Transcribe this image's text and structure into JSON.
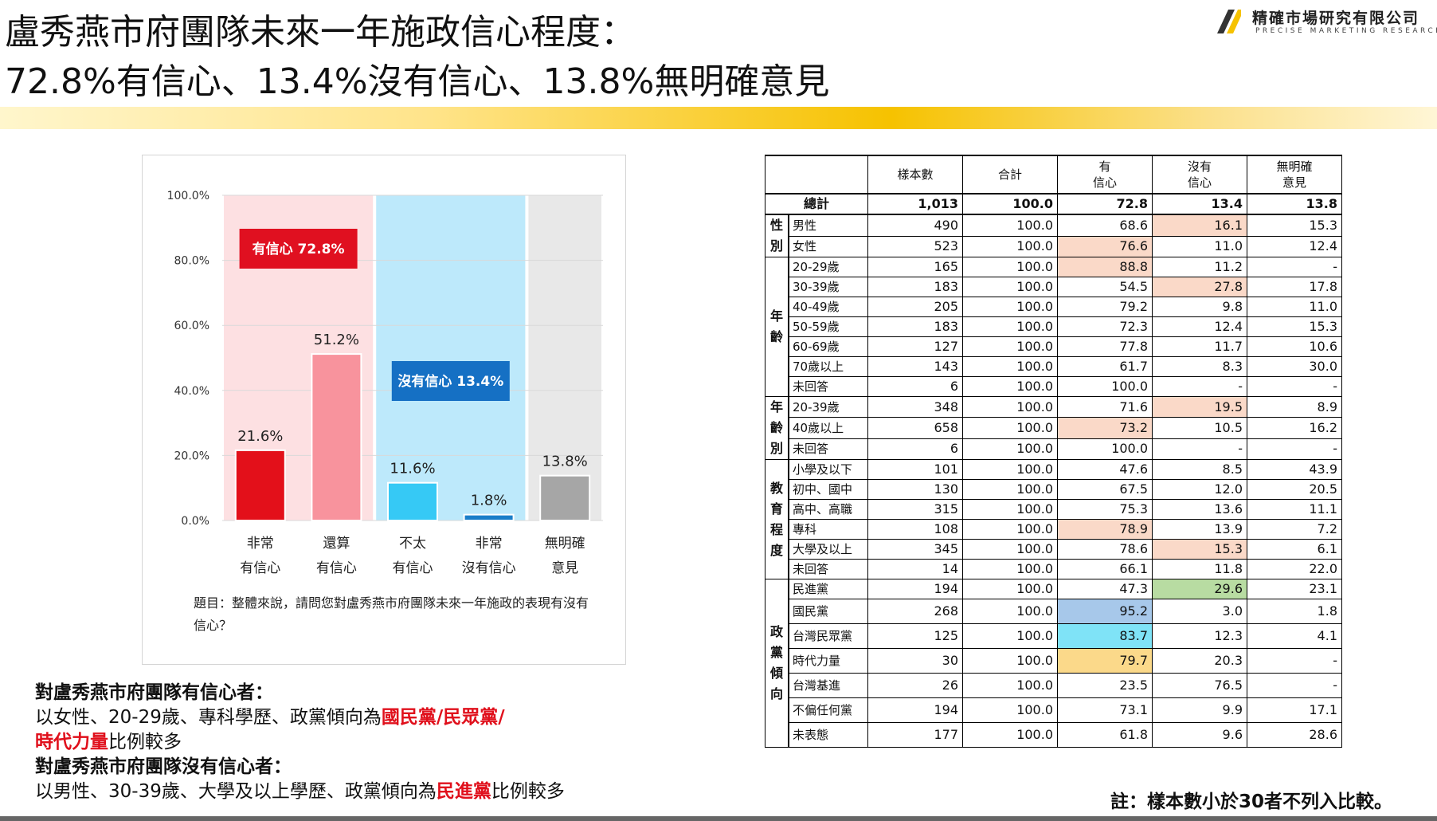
{
  "title": {
    "line1": "盧秀燕市府團隊未來一年施政信心程度：",
    "line2": "72.8%有信心、13.4%沒有信心、13.8%無明確意見"
  },
  "logo": {
    "name": "精確市場研究有限公司",
    "sub": "PRECISE MARKETING RESEARCH",
    "accent": "#f6c200"
  },
  "chart_data": {
    "type": "bar",
    "categories": [
      [
        "非常",
        "有信心"
      ],
      [
        "還算",
        "有信心"
      ],
      [
        "不太",
        "有信心"
      ],
      [
        "非常",
        "沒有信心"
      ],
      [
        "無明確",
        "意見"
      ]
    ],
    "values": [
      21.6,
      51.2,
      11.6,
      1.8,
      13.8
    ],
    "value_labels": [
      "21.6%",
      "51.2%",
      "11.6%",
      "1.8%",
      "13.8%"
    ],
    "bar_colors": [
      "#e3101a",
      "#f8939d",
      "#36c9f5",
      "#1a7dc9",
      "#a6a6a6"
    ],
    "ylim": [
      0,
      100
    ],
    "yticks": [
      "0.0%",
      "20.0%",
      "40.0%",
      "60.0%",
      "80.0%",
      "100.0%"
    ],
    "groups": [
      {
        "label": "有信心 72.8%",
        "color": "#fde0e2",
        "label_bg": "#e01020",
        "span": [
          0,
          1
        ]
      },
      {
        "label": "沒有信心 13.4%",
        "color": "#bde9fb",
        "label_bg": "#1570c4",
        "span": [
          2,
          3
        ]
      },
      {
        "label": "",
        "color": "#e8e8e8",
        "label_bg": "",
        "span": [
          4,
          4
        ]
      }
    ],
    "question": "題目：整體來說，請問您對盧秀燕市府團隊未來一年施政的表現有沒有信心？"
  },
  "table": {
    "headers": [
      "樣本數",
      "合計",
      "有\n信心",
      "沒有\n信心",
      "無明確\n意見"
    ],
    "total": {
      "label": "總計",
      "values": [
        "1,013",
        "100.0",
        "72.8",
        "13.4",
        "13.8"
      ]
    },
    "groups": [
      {
        "name": "性別",
        "rows": [
          {
            "label": "男性",
            "values": [
              "490",
              "100.0",
              "68.6",
              "16.1",
              "15.3"
            ],
            "hl": [
              null,
              null,
              null,
              "pink",
              null
            ]
          },
          {
            "label": "女性",
            "values": [
              "523",
              "100.0",
              "76.6",
              "11.0",
              "12.4"
            ],
            "hl": [
              null,
              null,
              "pink",
              null,
              null
            ]
          }
        ]
      },
      {
        "name": "年齡",
        "rows": [
          {
            "label": "20-29歲",
            "values": [
              "165",
              "100.0",
              "88.8",
              "11.2",
              "-"
            ],
            "hl": [
              null,
              null,
              "pink",
              null,
              null
            ]
          },
          {
            "label": "30-39歲",
            "values": [
              "183",
              "100.0",
              "54.5",
              "27.8",
              "17.8"
            ],
            "hl": [
              null,
              null,
              null,
              "pink",
              null
            ]
          },
          {
            "label": "40-49歲",
            "values": [
              "205",
              "100.0",
              "79.2",
              "9.8",
              "11.0"
            ],
            "hl": [
              null,
              null,
              null,
              null,
              null
            ]
          },
          {
            "label": "50-59歲",
            "values": [
              "183",
              "100.0",
              "72.3",
              "12.4",
              "15.3"
            ],
            "hl": [
              null,
              null,
              null,
              null,
              null
            ]
          },
          {
            "label": "60-69歲",
            "values": [
              "127",
              "100.0",
              "77.8",
              "11.7",
              "10.6"
            ],
            "hl": [
              null,
              null,
              null,
              null,
              null
            ]
          },
          {
            "label": "70歲以上",
            "values": [
              "143",
              "100.0",
              "61.7",
              "8.3",
              "30.0"
            ],
            "hl": [
              null,
              null,
              null,
              null,
              null
            ]
          },
          {
            "label": "未回答",
            "values": [
              "6",
              "100.0",
              "100.0",
              "-",
              "-"
            ],
            "hl": [
              null,
              null,
              null,
              null,
              null
            ]
          }
        ]
      },
      {
        "name": "年齡別",
        "rows": [
          {
            "label": "20-39歲",
            "values": [
              "348",
              "100.0",
              "71.6",
              "19.5",
              "8.9"
            ],
            "hl": [
              null,
              null,
              null,
              "pink",
              null
            ]
          },
          {
            "label": "40歲以上",
            "values": [
              "658",
              "100.0",
              "73.2",
              "10.5",
              "16.2"
            ],
            "hl": [
              null,
              null,
              "pink",
              null,
              null
            ]
          },
          {
            "label": "未回答",
            "values": [
              "6",
              "100.0",
              "100.0",
              "-",
              "-"
            ],
            "hl": [
              null,
              null,
              null,
              null,
              null
            ]
          }
        ]
      },
      {
        "name": "教育程度",
        "rows": [
          {
            "label": "小學及以下",
            "values": [
              "101",
              "100.0",
              "47.6",
              "8.5",
              "43.9"
            ],
            "hl": [
              null,
              null,
              null,
              null,
              null
            ]
          },
          {
            "label": "初中、國中",
            "values": [
              "130",
              "100.0",
              "67.5",
              "12.0",
              "20.5"
            ],
            "hl": [
              null,
              null,
              null,
              null,
              null
            ]
          },
          {
            "label": "高中、高職",
            "values": [
              "315",
              "100.0",
              "75.3",
              "13.6",
              "11.1"
            ],
            "hl": [
              null,
              null,
              null,
              null,
              null
            ]
          },
          {
            "label": "專科",
            "values": [
              "108",
              "100.0",
              "78.9",
              "13.9",
              "7.2"
            ],
            "hl": [
              null,
              null,
              "pink",
              null,
              null
            ]
          },
          {
            "label": "大學及以上",
            "values": [
              "345",
              "100.0",
              "78.6",
              "15.3",
              "6.1"
            ],
            "hl": [
              null,
              null,
              null,
              "pink",
              null
            ]
          },
          {
            "label": "未回答",
            "values": [
              "14",
              "100.0",
              "66.1",
              "11.8",
              "22.0"
            ],
            "hl": [
              null,
              null,
              null,
              null,
              null
            ]
          }
        ]
      },
      {
        "name": "政黨傾向",
        "rows": [
          {
            "label": "民進黨",
            "values": [
              "194",
              "100.0",
              "47.3",
              "29.6",
              "23.1"
            ],
            "hl": [
              null,
              null,
              null,
              "green",
              null
            ]
          },
          {
            "label": "國民黨",
            "values": [
              "268",
              "100.0",
              "95.2",
              "3.0",
              "1.8"
            ],
            "hl": [
              null,
              null,
              "blue",
              null,
              null
            ]
          },
          {
            "label": "台灣民眾黨",
            "values": [
              "125",
              "100.0",
              "83.7",
              "12.3",
              "4.1"
            ],
            "hl": [
              null,
              null,
              "cyan",
              null,
              null
            ]
          },
          {
            "label": "時代力量",
            "values": [
              "30",
              "100.0",
              "79.7",
              "20.3",
              "-"
            ],
            "hl": [
              null,
              null,
              "yellow",
              null,
              null
            ]
          },
          {
            "label": "台灣基進",
            "values": [
              "26",
              "100.0",
              "23.5",
              "76.5",
              "-"
            ],
            "hl": [
              null,
              null,
              null,
              null,
              null
            ]
          },
          {
            "label": "不偏任何黨",
            "values": [
              "194",
              "100.0",
              "73.1",
              "9.9",
              "17.1"
            ],
            "hl": [
              null,
              null,
              null,
              null,
              null
            ]
          },
          {
            "label": "未表態",
            "values": [
              "177",
              "100.0",
              "61.8",
              "9.6",
              "28.6"
            ],
            "hl": [
              null,
              null,
              null,
              null,
              null
            ]
          }
        ]
      }
    ]
  },
  "summary": {
    "conf_head": "對盧秀燕市府團隊有信心者：",
    "conf_pre": "以女性、20-29歲、專科學歷、政黨傾向為",
    "conf_hl1": "國民黨/民眾黨/",
    "conf_hl2": "時代力量",
    "conf_post": "比例較多",
    "noconf_head": "對盧秀燕市府團隊沒有信心者：",
    "noconf_pre": "以男性、30-39歲、大學及以上學歷、政黨傾向為",
    "noconf_hl": "民進黨",
    "noconf_post": "比例較多"
  },
  "note": "註：樣本數小於30者不列入比較。"
}
